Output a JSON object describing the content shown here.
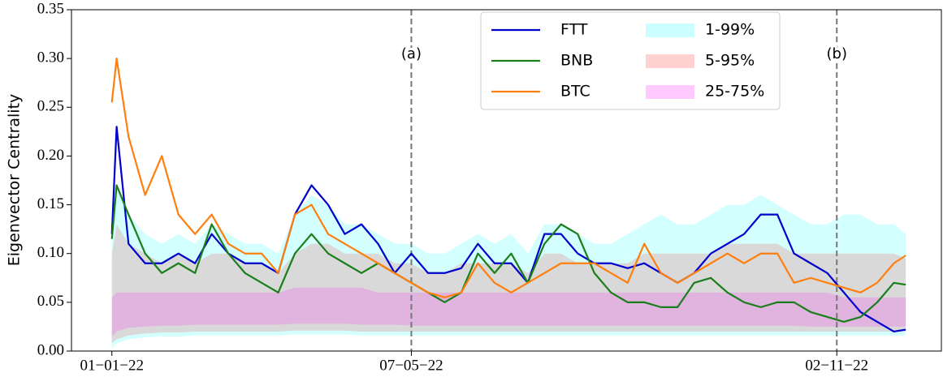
{
  "chart_data": {
    "type": "line",
    "ylabel": "Eigenvector Centrality",
    "x": [
      "2022-01-01",
      "2022-01-03",
      "2022-01-08",
      "2022-01-15",
      "2022-01-22",
      "2022-01-29",
      "2022-02-05",
      "2022-02-12",
      "2022-02-19",
      "2022-02-26",
      "2022-03-05",
      "2022-03-12",
      "2022-03-19",
      "2022-03-26",
      "2022-04-02",
      "2022-04-09",
      "2022-04-16",
      "2022-04-23",
      "2022-04-30",
      "2022-05-07",
      "2022-05-14",
      "2022-05-21",
      "2022-05-28",
      "2022-06-04",
      "2022-06-11",
      "2022-06-18",
      "2022-06-25",
      "2022-07-02",
      "2022-07-09",
      "2022-07-16",
      "2022-07-23",
      "2022-07-30",
      "2022-08-06",
      "2022-08-13",
      "2022-08-20",
      "2022-08-27",
      "2022-09-03",
      "2022-09-10",
      "2022-09-17",
      "2022-09-24",
      "2022-10-01",
      "2022-10-08",
      "2022-10-15",
      "2022-10-22",
      "2022-10-29",
      "2022-11-05",
      "2022-11-12",
      "2022-11-19",
      "2022-11-26",
      "2022-12-01"
    ],
    "series": [
      {
        "name": "FTT",
        "color": "#0000cc",
        "values": [
          0.12,
          0.23,
          0.11,
          0.09,
          0.09,
          0.1,
          0.09,
          0.12,
          0.1,
          0.09,
          0.09,
          0.08,
          0.14,
          0.17,
          0.15,
          0.12,
          0.13,
          0.11,
          0.08,
          0.1,
          0.08,
          0.08,
          0.085,
          0.11,
          0.09,
          0.09,
          0.07,
          0.12,
          0.12,
          0.1,
          0.09,
          0.09,
          0.085,
          0.09,
          0.08,
          0.07,
          0.08,
          0.1,
          0.11,
          0.12,
          0.14,
          0.14,
          0.1,
          0.09,
          0.08,
          0.06,
          0.04,
          0.03,
          0.02,
          0.022
        ]
      },
      {
        "name": "BNB",
        "color": "#1a7f1a",
        "values": [
          0.115,
          0.17,
          0.14,
          0.1,
          0.08,
          0.09,
          0.08,
          0.13,
          0.1,
          0.08,
          0.07,
          0.06,
          0.1,
          0.12,
          0.1,
          0.09,
          0.08,
          0.09,
          0.08,
          0.07,
          0.06,
          0.05,
          0.06,
          0.1,
          0.08,
          0.1,
          0.07,
          0.11,
          0.13,
          0.12,
          0.08,
          0.06,
          0.05,
          0.05,
          0.045,
          0.045,
          0.07,
          0.075,
          0.06,
          0.05,
          0.045,
          0.05,
          0.05,
          0.04,
          0.035,
          0.03,
          0.035,
          0.05,
          0.07,
          0.068
        ]
      },
      {
        "name": "BTC",
        "color": "#ff7f0e",
        "values": [
          0.255,
          0.3,
          0.22,
          0.16,
          0.2,
          0.14,
          0.12,
          0.14,
          0.11,
          0.1,
          0.1,
          0.08,
          0.14,
          0.15,
          0.12,
          0.11,
          0.1,
          0.09,
          0.08,
          0.07,
          0.06,
          0.055,
          0.06,
          0.09,
          0.07,
          0.06,
          0.07,
          0.08,
          0.09,
          0.09,
          0.09,
          0.08,
          0.07,
          0.11,
          0.08,
          0.07,
          0.08,
          0.09,
          0.1,
          0.09,
          0.1,
          0.1,
          0.07,
          0.075,
          0.07,
          0.065,
          0.06,
          0.07,
          0.09,
          0.098
        ]
      }
    ],
    "bands": [
      {
        "name": "1-99%",
        "color": "#00ffff",
        "opacity": 0.17,
        "lower": [
          0.003,
          0.008,
          0.012,
          0.014,
          0.015,
          0.015,
          0.016,
          0.016,
          0.016,
          0.016,
          0.016,
          0.016,
          0.017,
          0.017,
          0.017,
          0.017,
          0.016,
          0.016,
          0.016,
          0.016,
          0.016,
          0.016,
          0.016,
          0.016,
          0.016,
          0.016,
          0.016,
          0.016,
          0.016,
          0.016,
          0.016,
          0.016,
          0.016,
          0.016,
          0.016,
          0.016,
          0.016,
          0.016,
          0.016,
          0.016,
          0.016,
          0.016,
          0.016,
          0.016,
          0.016,
          0.016,
          0.016,
          0.016,
          0.016,
          0.016
        ],
        "upper": [
          0.12,
          0.17,
          0.14,
          0.12,
          0.11,
          0.12,
          0.11,
          0.13,
          0.12,
          0.11,
          0.11,
          0.1,
          0.14,
          0.16,
          0.15,
          0.13,
          0.13,
          0.12,
          0.11,
          0.11,
          0.1,
          0.1,
          0.11,
          0.12,
          0.11,
          0.12,
          0.1,
          0.13,
          0.13,
          0.12,
          0.11,
          0.11,
          0.12,
          0.13,
          0.14,
          0.13,
          0.13,
          0.14,
          0.15,
          0.15,
          0.16,
          0.15,
          0.14,
          0.13,
          0.13,
          0.14,
          0.14,
          0.13,
          0.13,
          0.12
        ]
      },
      {
        "name": "5-95%",
        "color": "#ff0000",
        "opacity": 0.15,
        "lower": [
          0.008,
          0.012,
          0.016,
          0.018,
          0.019,
          0.019,
          0.02,
          0.02,
          0.02,
          0.02,
          0.02,
          0.02,
          0.021,
          0.021,
          0.021,
          0.021,
          0.02,
          0.02,
          0.02,
          0.02,
          0.02,
          0.02,
          0.02,
          0.02,
          0.02,
          0.02,
          0.02,
          0.02,
          0.02,
          0.02,
          0.02,
          0.02,
          0.02,
          0.02,
          0.02,
          0.02,
          0.02,
          0.02,
          0.02,
          0.02,
          0.02,
          0.02,
          0.02,
          0.02,
          0.02,
          0.02,
          0.02,
          0.02,
          0.02,
          0.02
        ],
        "upper": [
          0.1,
          0.13,
          0.11,
          0.1,
          0.09,
          0.1,
          0.09,
          0.1,
          0.1,
          0.09,
          0.09,
          0.08,
          0.1,
          0.11,
          0.11,
          0.1,
          0.1,
          0.1,
          0.09,
          0.09,
          0.08,
          0.08,
          0.09,
          0.09,
          0.09,
          0.09,
          0.08,
          0.1,
          0.1,
          0.09,
          0.09,
          0.09,
          0.09,
          0.1,
          0.1,
          0.1,
          0.1,
          0.1,
          0.11,
          0.11,
          0.11,
          0.11,
          0.1,
          0.1,
          0.1,
          0.1,
          0.1,
          0.1,
          0.1,
          0.095
        ]
      },
      {
        "name": "25-75%",
        "color": "#ff00ff",
        "opacity": 0.17,
        "lower": [
          0.015,
          0.02,
          0.024,
          0.025,
          0.026,
          0.026,
          0.027,
          0.027,
          0.027,
          0.027,
          0.027,
          0.027,
          0.028,
          0.028,
          0.028,
          0.028,
          0.027,
          0.027,
          0.027,
          0.026,
          0.026,
          0.026,
          0.026,
          0.026,
          0.026,
          0.026,
          0.026,
          0.026,
          0.026,
          0.026,
          0.026,
          0.026,
          0.026,
          0.026,
          0.026,
          0.026,
          0.026,
          0.026,
          0.026,
          0.026,
          0.026,
          0.026,
          0.026,
          0.025,
          0.025,
          0.025,
          0.025,
          0.025,
          0.025,
          0.025
        ],
        "upper": [
          0.055,
          0.06,
          0.06,
          0.06,
          0.06,
          0.06,
          0.06,
          0.06,
          0.06,
          0.06,
          0.06,
          0.06,
          0.065,
          0.065,
          0.065,
          0.065,
          0.065,
          0.06,
          0.06,
          0.06,
          0.06,
          0.06,
          0.06,
          0.06,
          0.06,
          0.06,
          0.06,
          0.06,
          0.06,
          0.06,
          0.06,
          0.06,
          0.06,
          0.06,
          0.06,
          0.06,
          0.06,
          0.06,
          0.06,
          0.06,
          0.06,
          0.06,
          0.06,
          0.06,
          0.06,
          0.055,
          0.055,
          0.055,
          0.055,
          0.055
        ]
      }
    ],
    "annotations": [
      {
        "x": "2022-05-07",
        "text": "(a)"
      },
      {
        "x": "2022-11-02",
        "text": "(b)"
      }
    ],
    "xlim": [
      "2021-12-15",
      "2022-12-16"
    ],
    "xticks": [
      {
        "value": "2022-01-01",
        "label": "01−01−22"
      },
      {
        "value": "2022-05-07",
        "label": "07−05−22"
      },
      {
        "value": "2022-11-02",
        "label": "02−11−22"
      }
    ],
    "ylim": [
      0,
      0.35
    ],
    "yticks": [
      {
        "value": 0,
        "label": "0.00"
      },
      0.05,
      {
        "value": 0.1,
        "label": "0.10"
      },
      0.15,
      {
        "value": 0.2,
        "label": "0.20"
      },
      0.25,
      {
        "value": 0.3,
        "label": "0.30"
      },
      0.35
    ],
    "legend": "upper center",
    "grid": false
  }
}
